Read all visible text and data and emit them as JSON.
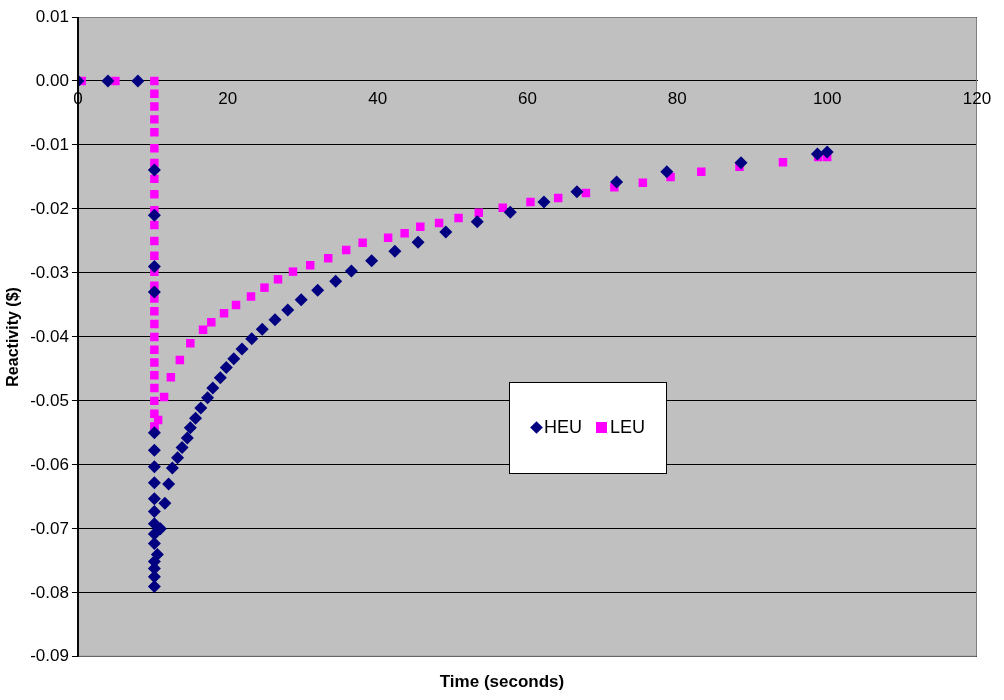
{
  "chart_data": {
    "type": "scatter",
    "xlabel": "Time (seconds)",
    "ylabel": "Reactivity ($)",
    "xlim": [
      0,
      120
    ],
    "xticks": [
      0,
      20,
      40,
      60,
      80,
      100,
      120
    ],
    "ylim": [
      -0.09,
      0.01
    ],
    "yticks": [
      {
        "value": 0.01,
        "label": "0.01"
      },
      {
        "value": 0,
        "label": "0.00"
      },
      {
        "value": -0.01,
        "label": "-0.01"
      },
      {
        "value": -0.02,
        "label": "-0.02"
      },
      {
        "value": -0.03,
        "label": "-0.03"
      },
      {
        "value": -0.04,
        "label": "-0.04"
      },
      {
        "value": -0.05,
        "label": "-0.05"
      },
      {
        "value": -0.06,
        "label": "-0.06"
      },
      {
        "value": -0.07,
        "label": "-0.07"
      },
      {
        "value": -0.08,
        "label": "-0.08"
      },
      {
        "value": -0.09,
        "label": "-0.09"
      }
    ],
    "grid": "y",
    "legend": "right",
    "series": [
      {
        "name": "HEU",
        "color": "#000080",
        "marker": "diamond",
        "x": [
          0,
          4,
          8,
          10.2,
          10.2,
          10.2,
          10.2,
          10.2,
          10.2,
          10.2,
          10.2,
          10.2,
          10.2,
          10.2,
          10.2,
          10.2,
          10.2,
          10.2,
          10.2,
          10.2,
          10.6,
          11.0,
          11.6,
          12.1,
          12.6,
          13.3,
          13.9,
          14.6,
          15.0,
          15.7,
          16.4,
          17.3,
          18.0,
          19.0,
          19.8,
          20.8,
          21.9,
          23.2,
          24.6,
          26.3,
          28.0,
          29.8,
          32.0,
          34.4,
          36.5,
          39.2,
          42.3,
          45.4,
          49.1,
          53.3,
          57.7,
          62.2,
          66.6,
          71.9,
          78.6,
          88.5,
          98.7,
          100
        ],
        "values": [
          0,
          0,
          0,
          -0.0139,
          -0.021,
          -0.029,
          -0.033,
          -0.055,
          -0.0577,
          -0.0603,
          -0.0628,
          -0.0653,
          -0.0673,
          -0.0692,
          -0.0708,
          -0.0723,
          -0.0751,
          -0.0762,
          -0.0775,
          -0.079,
          -0.074,
          -0.07,
          -0.066,
          -0.063,
          -0.0605,
          -0.0589,
          -0.0573,
          -0.0558,
          -0.0542,
          -0.0527,
          -0.0511,
          -0.0495,
          -0.048,
          -0.0464,
          -0.0448,
          -0.0434,
          -0.0419,
          -0.0403,
          -0.0388,
          -0.0373,
          -0.0358,
          -0.0342,
          -0.0327,
          -0.0313,
          -0.0297,
          -0.0281,
          -0.0266,
          -0.0252,
          -0.0236,
          -0.022,
          -0.0205,
          -0.0189,
          -0.0173,
          -0.0158,
          -0.0142,
          -0.0128,
          -0.0114,
          -0.0111
        ]
      },
      {
        "name": "LEU",
        "color": "#ff00ff",
        "marker": "square",
        "x": [
          0.5,
          5,
          10.2,
          10.2,
          10.2,
          10.2,
          10.2,
          10.2,
          10.2,
          10.2,
          10.2,
          10.2,
          10.2,
          10.2,
          10.2,
          10.2,
          10.2,
          10.2,
          10.2,
          10.2,
          10.2,
          10.2,
          10.2,
          10.2,
          10.2,
          10.2,
          10.2,
          10.2,
          10.2,
          10.7,
          11.5,
          12.4,
          13.6,
          15.0,
          16.7,
          17.8,
          19.5,
          21.1,
          23.1,
          24.9,
          26.7,
          28.7,
          31.0,
          33.4,
          35.8,
          38.0,
          41.4,
          43.6,
          45.7,
          48.2,
          50.8,
          53.5,
          56.7,
          60.4,
          64.1,
          67.8,
          71.6,
          75.4,
          79.1,
          83.2,
          88.3,
          94.1,
          98.8,
          100
        ],
        "values": [
          0,
          0,
          0,
          -0.002,
          -0.004,
          -0.006,
          -0.008,
          -0.0105,
          -0.0128,
          -0.0153,
          -0.0177,
          -0.0202,
          -0.0225,
          -0.025,
          -0.0273,
          -0.0298,
          -0.032,
          -0.034,
          -0.036,
          -0.038,
          -0.04,
          -0.042,
          -0.044,
          -0.046,
          -0.048,
          -0.05,
          -0.052,
          -0.054,
          -0.0545,
          -0.053,
          -0.0494,
          -0.0463,
          -0.0436,
          -0.041,
          -0.0389,
          -0.0377,
          -0.0363,
          -0.035,
          -0.0337,
          -0.0323,
          -0.031,
          -0.0298,
          -0.0288,
          -0.0277,
          -0.0264,
          -0.0253,
          -0.0245,
          -0.0238,
          -0.0228,
          -0.0222,
          -0.0214,
          -0.0206,
          -0.0198,
          -0.0189,
          -0.0183,
          -0.0175,
          -0.0166,
          -0.0159,
          -0.015,
          -0.0142,
          -0.0134,
          -0.0127,
          -0.0119,
          -0.0119
        ]
      }
    ]
  }
}
